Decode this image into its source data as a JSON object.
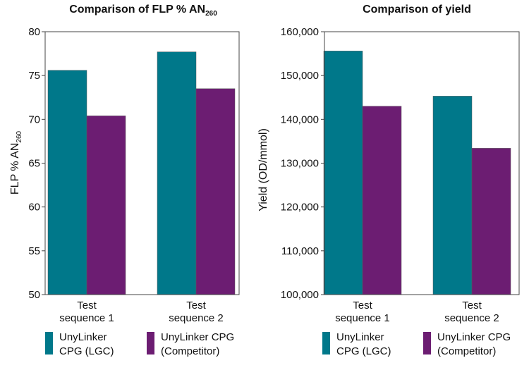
{
  "chart_data": [
    {
      "type": "bar",
      "title": "Comparison of FLP % AN",
      "title_sub": "260",
      "ylabel": "FLP % AN",
      "ylabel_sub": "260",
      "ylim": [
        50,
        80
      ],
      "yticks": [
        50,
        55,
        60,
        65,
        70,
        75,
        80
      ],
      "ytick_labels": [
        "50",
        "55",
        "60",
        "65",
        "70",
        "75",
        "80"
      ],
      "categories": [
        [
          "Test",
          "sequence 1"
        ],
        [
          "Test",
          "sequence 2"
        ]
      ],
      "series": [
        {
          "name": "UnyLinker CPG (LGC)",
          "name_lines": [
            "UnyLinker",
            "CPG (LGC)"
          ],
          "color": "#00788A",
          "values": [
            75.6,
            77.7
          ]
        },
        {
          "name": "UnyLinker CPG (Competitor)",
          "name_lines": [
            "UnyLinker CPG",
            "(Competitor)"
          ],
          "color": "#6C1D72",
          "values": [
            70.4,
            73.5
          ]
        }
      ],
      "grid": false,
      "legend": "bottom"
    },
    {
      "type": "bar",
      "title": "Comparison of yield",
      "ylabel": "Yield (OD/mmol)",
      "ylim": [
        100000,
        160000
      ],
      "yticks": [
        100000,
        110000,
        120000,
        130000,
        140000,
        150000,
        160000
      ],
      "ytick_labels": [
        "100,000",
        "110,000",
        "120,000",
        "130,000",
        "140,000",
        "150,000",
        "160,000"
      ],
      "categories": [
        [
          "Test",
          "sequence 1"
        ],
        [
          "Test",
          "sequence 2"
        ]
      ],
      "series": [
        {
          "name": "UnyLinker CPG (LGC)",
          "name_lines": [
            "UnyLinker",
            "CPG (LGC)"
          ],
          "color": "#00788A",
          "values": [
            155600,
            145300
          ]
        },
        {
          "name": "UnyLinker CPG (Competitor)",
          "name_lines": [
            "UnyLinker CPG",
            "(Competitor)"
          ],
          "color": "#6C1D72",
          "values": [
            143000,
            133400
          ]
        }
      ],
      "grid": false,
      "legend": "bottom"
    }
  ]
}
